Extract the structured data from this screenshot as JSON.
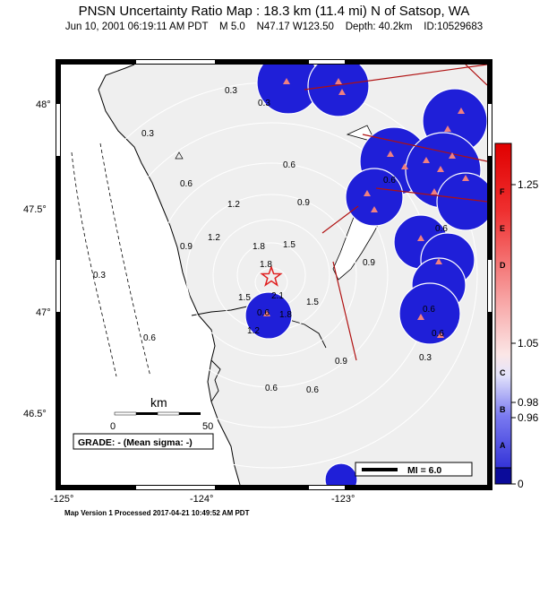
{
  "map": {
    "title": "PNSN Uncertainty Ratio Map : 18.3 km (11.4 mi) N of Satsop, WA",
    "subtitle": "Jun 10, 2001 06:19:11 AM PDT    M 5.0    N47.17 W123.50    Depth: 40.2km    ID:10529683",
    "footer": "Map Version 1 Processed 2017-04-21 10:49:52 AM PDT",
    "lon_ticks": [
      "-125°",
      "-124°",
      "-123°"
    ],
    "lat_ticks": [
      "48°",
      "47.5°",
      "47°",
      "46.5°"
    ],
    "scale_unit": "km",
    "scale_start": "0",
    "scale_end": "50",
    "grade_text": "GRADE: - (Mean sigma: -)",
    "mi_legend": "MI = 6.0",
    "contour_labels": [
      "0.3",
      "0.3",
      "0.3",
      "0.3",
      "0.6",
      "0.6",
      "0.6",
      "0.6",
      "0.6",
      "0.6",
      "0.6",
      "0.9",
      "0.9",
      "0.9",
      "0.9",
      "1.2",
      "1.2",
      "1.2",
      "1.5",
      "1.5",
      "1.5",
      "1.8",
      "1.8",
      "1.8",
      "2.1",
      "0.6",
      "0.6",
      "0.6",
      "0.3"
    ],
    "epicenter_marker": "red-star",
    "colors": {
      "land": "#efefef",
      "water": "#ffffff",
      "station_area": "#1f1fd8",
      "station": "#f08080",
      "fault": "#b01010",
      "epicenter": "#e02020"
    }
  },
  "colorbar": {
    "letters": [
      "F",
      "E",
      "D",
      "C",
      "B",
      "A"
    ],
    "values": [
      "1.25",
      "1.05",
      "0.98",
      "0.96",
      "0"
    ]
  }
}
